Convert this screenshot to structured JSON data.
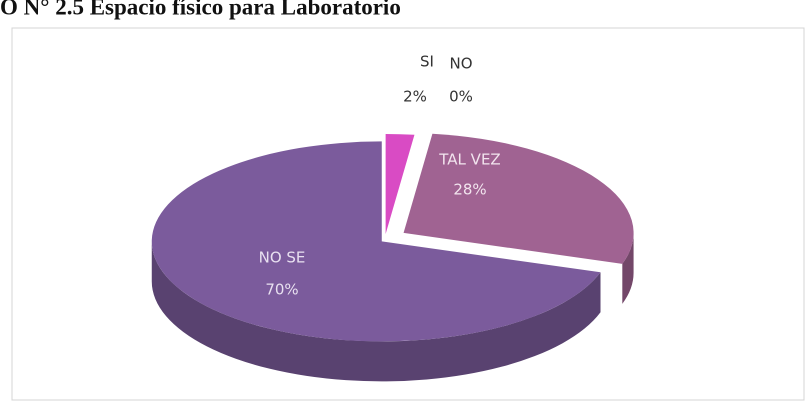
{
  "chart_data": {
    "type": "pie",
    "title": "O N° 2.5 Espacio físico para Laboratorio",
    "categories": [
      "SI",
      "NO",
      "TAL VEZ",
      "NO SE"
    ],
    "values": [
      2,
      0,
      28,
      70
    ],
    "value_labels": [
      "2%",
      "0%",
      "28%",
      "70%"
    ],
    "colors": [
      "#d94bc4",
      "#b04a9a",
      "#a06392",
      "#7b5b9c"
    ]
  }
}
